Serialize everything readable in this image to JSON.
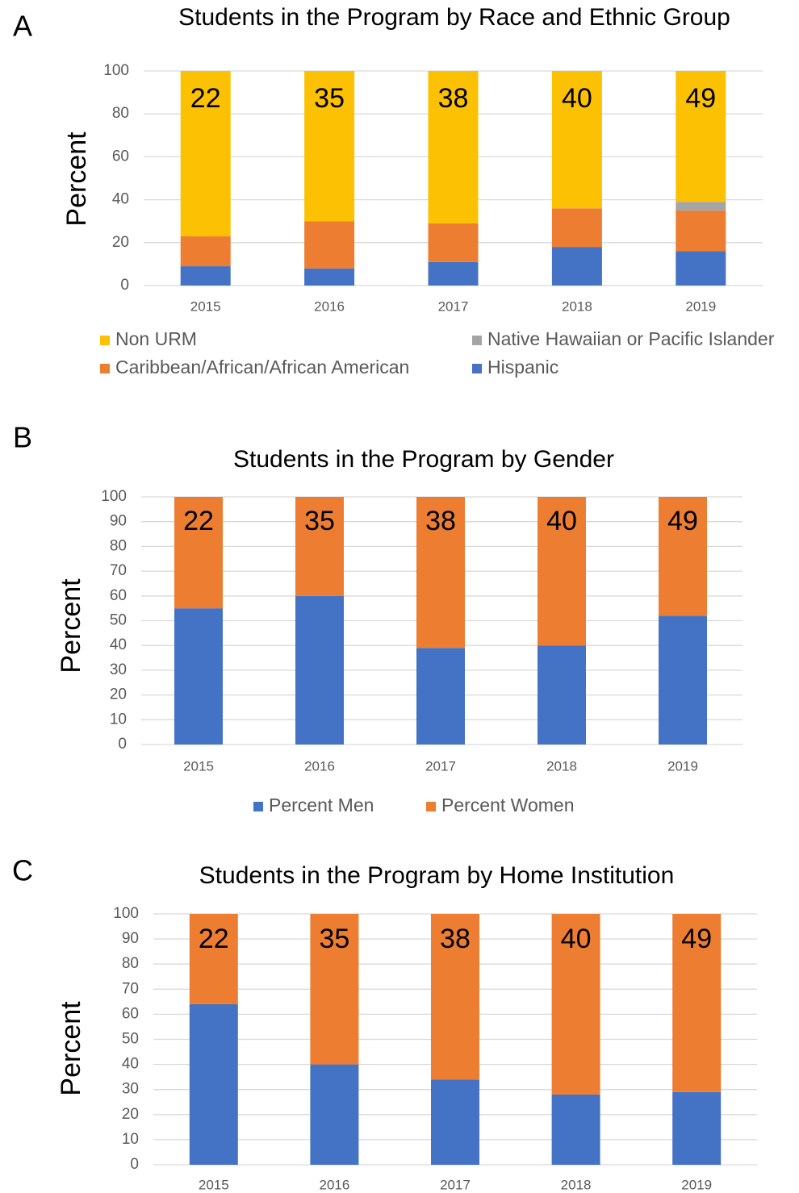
{
  "chart_data": [
    {
      "type": "bar",
      "stacked": true,
      "panel": "A",
      "title": "Students in the Program by Race and Ethnic Group",
      "y_label": "Percent",
      "categories": [
        "2015",
        "2016",
        "2017",
        "2018",
        "2019"
      ],
      "series": [
        {
          "name": "Hispanic",
          "color": "#4472c4",
          "values": [
            9,
            8,
            11,
            18,
            16
          ]
        },
        {
          "name": "Caribbean/African/African American",
          "color": "#ed7d31",
          "values": [
            14,
            22,
            18,
            18,
            19
          ]
        },
        {
          "name": "Native Hawaiian or Pacific Islander",
          "color": "#a5a5a5",
          "values": [
            0,
            0,
            0,
            0,
            4
          ]
        },
        {
          "name": "Non URM",
          "color": "#fbc102",
          "values": [
            77,
            70,
            71,
            64,
            61
          ]
        }
      ],
      "annotations": [
        22,
        35,
        38,
        40,
        49
      ],
      "ylim": [
        0,
        100
      ],
      "yticks": [
        0,
        20,
        40,
        60,
        80,
        100
      ],
      "grid": true,
      "legend": "bottom"
    },
    {
      "type": "bar",
      "stacked": true,
      "panel": "B",
      "title": "Students in the Program by Gender",
      "y_label": "Percent",
      "categories": [
        "2015",
        "2016",
        "2017",
        "2018",
        "2019"
      ],
      "series": [
        {
          "name": "Percent Men",
          "color": "#4472c4",
          "values": [
            55,
            60,
            39,
            40,
            52
          ]
        },
        {
          "name": "Percent Women",
          "color": "#ed7d31",
          "values": [
            45,
            40,
            61,
            60,
            48
          ]
        }
      ],
      "annotations": [
        22,
        35,
        38,
        40,
        49
      ],
      "ylim": [
        0,
        100
      ],
      "yticks": [
        0,
        10,
        20,
        30,
        40,
        50,
        60,
        70,
        80,
        90,
        100
      ],
      "grid": true,
      "legend": "bottom"
    },
    {
      "type": "bar",
      "stacked": true,
      "panel": "C",
      "title": "Students in the Program by Home Institution",
      "y_label": "Percent",
      "categories": [
        "2015",
        "2016",
        "2017",
        "2018",
        "2019"
      ],
      "series": [
        {
          "color": "#4472c4",
          "values": [
            64,
            40,
            34,
            28,
            29
          ]
        },
        {
          "color": "#ed7d31",
          "values": [
            36,
            60,
            66,
            72,
            71
          ]
        }
      ],
      "annotations": [
        22,
        35,
        38,
        40,
        49
      ],
      "ylim": [
        0,
        100
      ],
      "yticks": [
        0,
        10,
        20,
        30,
        40,
        50,
        60,
        70,
        80,
        90,
        100
      ],
      "grid": true
    }
  ]
}
